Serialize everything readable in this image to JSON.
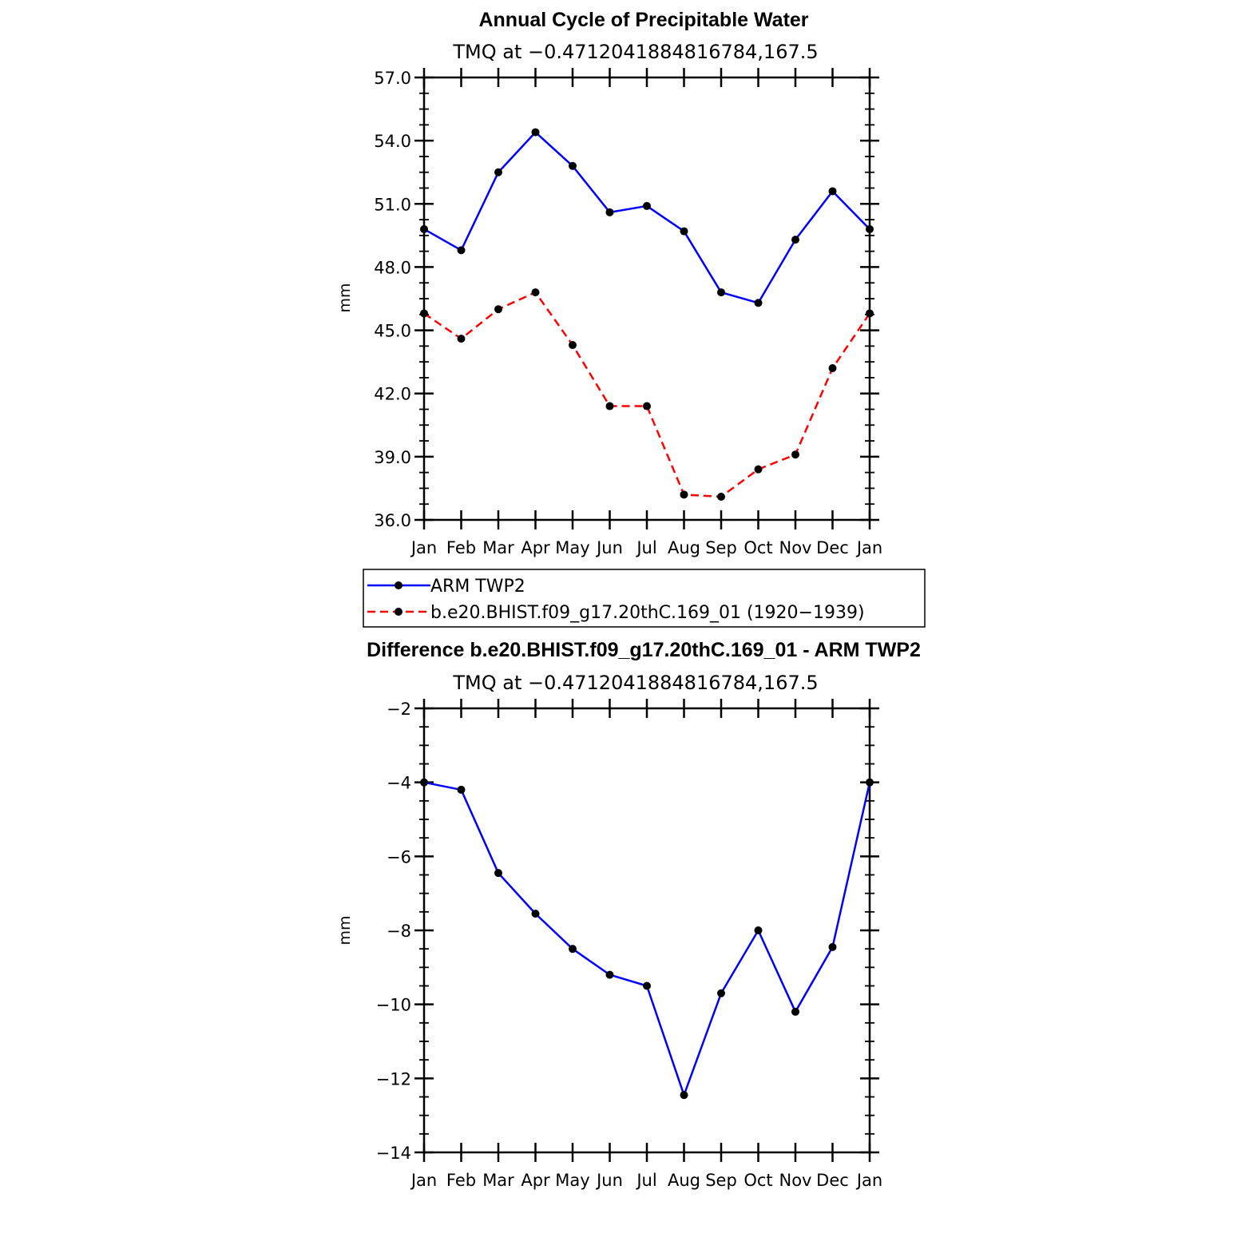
{
  "chart_data": [
    {
      "type": "line",
      "title": "Annual Cycle of Precipitable Water",
      "subtitle": "TMQ at −0.4712041884816784,167.5",
      "ylabel": "mm",
      "xlabel": "",
      "categories": [
        "Jan",
        "Feb",
        "Mar",
        "Apr",
        "May",
        "Jun",
        "Jul",
        "Aug",
        "Sep",
        "Oct",
        "Nov",
        "Dec",
        "Jan"
      ],
      "ylim": [
        36.0,
        57.0
      ],
      "yticks": [
        36.0,
        39.0,
        42.0,
        45.0,
        48.0,
        51.0,
        54.0,
        57.0
      ],
      "ytick_labels": [
        "36.0",
        "39.0",
        "42.0",
        "45.0",
        "48.0",
        "51.0",
        "54.0",
        "57.0"
      ],
      "series": [
        {
          "name": "ARM TWP2",
          "color": "#0000ff",
          "dash": "solid",
          "values": [
            49.8,
            48.8,
            52.5,
            54.4,
            52.8,
            50.6,
            50.9,
            49.7,
            46.8,
            46.3,
            49.3,
            51.6,
            49.8
          ]
        },
        {
          "name": "b.e20.BHIST.f09_g17.20thC.169_01 (1920−1939)",
          "color": "#ff0000",
          "dash": "dashed",
          "values": [
            45.8,
            44.6,
            46.0,
            46.8,
            44.3,
            41.4,
            41.4,
            37.2,
            37.1,
            38.4,
            39.1,
            43.2,
            45.8
          ]
        }
      ],
      "legend": "below"
    },
    {
      "type": "line",
      "title": "Difference b.e20.BHIST.f09_g17.20thC.169_01 - ARM TWP2",
      "subtitle": "TMQ at −0.4712041884816784,167.5",
      "ylabel": "mm",
      "xlabel": "",
      "categories": [
        "Jan",
        "Feb",
        "Mar",
        "Apr",
        "May",
        "Jun",
        "Jul",
        "Aug",
        "Sep",
        "Oct",
        "Nov",
        "Dec",
        "Jan"
      ],
      "ylim": [
        -14,
        -2
      ],
      "yticks": [
        -14,
        -12,
        -10,
        -8,
        -6,
        -4,
        -2
      ],
      "ytick_labels": [
        "−14",
        "−12",
        "−10",
        "−8",
        "−6",
        "−4",
        "−2"
      ],
      "series": [
        {
          "color": "#0000ff",
          "dash": "solid",
          "values": [
            -4.0,
            -4.2,
            -6.45,
            -7.55,
            -8.5,
            -9.2,
            -9.5,
            -12.45,
            -9.7,
            -8.0,
            -10.2,
            -8.45,
            -4.0
          ]
        }
      ]
    }
  ]
}
